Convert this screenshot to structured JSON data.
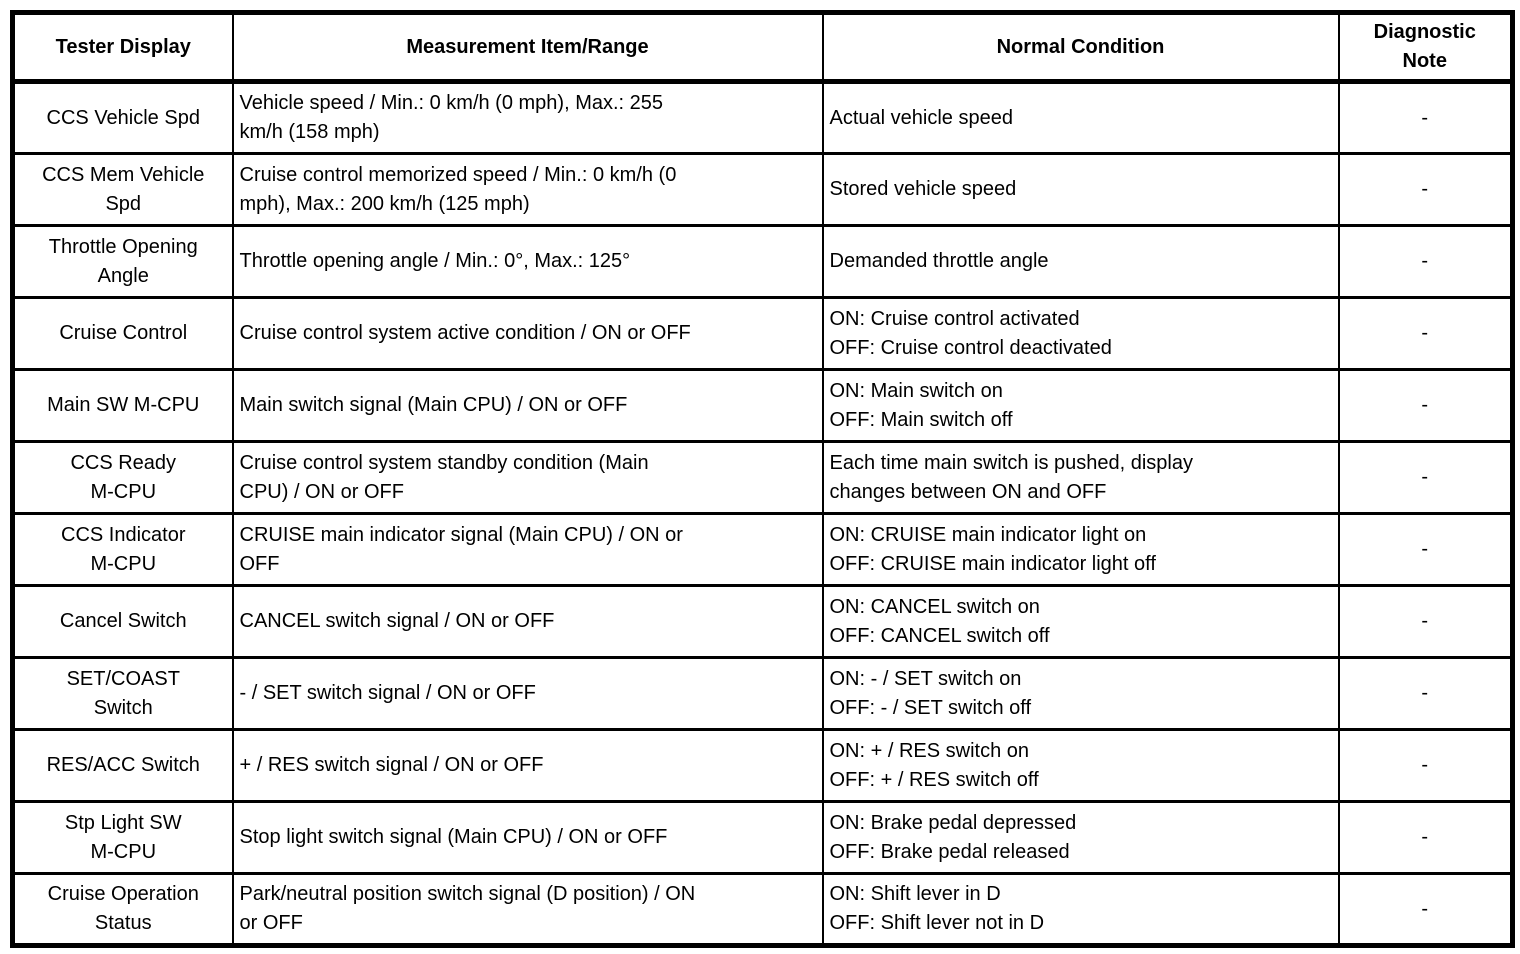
{
  "colors": {
    "border": "#000000",
    "text": "#000000",
    "background": "#ffffff"
  },
  "table": {
    "headers": [
      "Tester Display",
      "Measurement Item/Range",
      "Normal Condition",
      "Diagnostic\nNote"
    ],
    "rows": [
      {
        "display": "CCS Vehicle Spd",
        "item": "Vehicle speed / Min.: 0 km/h (0 mph), Max.: 255\nkm/h (158 mph)",
        "condition": "Actual vehicle speed",
        "note": "-"
      },
      {
        "display": "CCS Mem Vehicle\nSpd",
        "item": "Cruise control memorized speed / Min.: 0 km/h (0\nmph), Max.: 200 km/h (125 mph)",
        "condition": "Stored vehicle speed",
        "note": "-"
      },
      {
        "display": "Throttle Opening\nAngle",
        "item": "Throttle opening angle / Min.: 0°, Max.: 125°",
        "condition": "Demanded throttle angle",
        "note": "-"
      },
      {
        "display": "Cruise Control",
        "item": "Cruise control system active condition / ON or OFF",
        "condition": "ON: Cruise control activated\nOFF: Cruise control deactivated",
        "note": "-"
      },
      {
        "display": "Main SW M-CPU",
        "item": "Main switch signal (Main CPU) / ON or OFF",
        "condition": "ON: Main switch on\nOFF: Main switch off",
        "note": "-"
      },
      {
        "display": "CCS Ready\nM-CPU",
        "item": "Cruise control system standby condition (Main\nCPU) / ON or OFF",
        "condition": "Each time main switch is pushed, display\nchanges between ON and OFF",
        "note": "-"
      },
      {
        "display": "CCS Indicator\nM-CPU",
        "item": "CRUISE main indicator signal (Main CPU) / ON or\nOFF",
        "condition": "ON: CRUISE main indicator light on\nOFF: CRUISE main indicator light off",
        "note": "-"
      },
      {
        "display": "Cancel Switch",
        "item": "CANCEL switch signal / ON or OFF",
        "condition": "ON: CANCEL switch on\nOFF: CANCEL switch off",
        "note": "-"
      },
      {
        "display": "SET/COAST\nSwitch",
        "item": "- / SET switch signal / ON or OFF",
        "condition": "ON: - / SET switch on\nOFF: - / SET switch off",
        "note": "-"
      },
      {
        "display": "RES/ACC Switch",
        "item": "+ / RES switch signal / ON or OFF",
        "condition": "ON: + / RES switch on\nOFF: + / RES switch off",
        "note": "-"
      },
      {
        "display": "Stp Light SW\nM-CPU",
        "item": "Stop light switch signal (Main CPU) / ON or OFF",
        "condition": "ON: Brake pedal depressed\nOFF: Brake pedal released",
        "note": "-"
      },
      {
        "display": "Cruise Operation\nStatus",
        "item": "Park/neutral position switch signal (D position) / ON\nor OFF",
        "condition": "ON: Shift lever in D\nOFF: Shift lever not in D",
        "note": "-"
      }
    ]
  }
}
